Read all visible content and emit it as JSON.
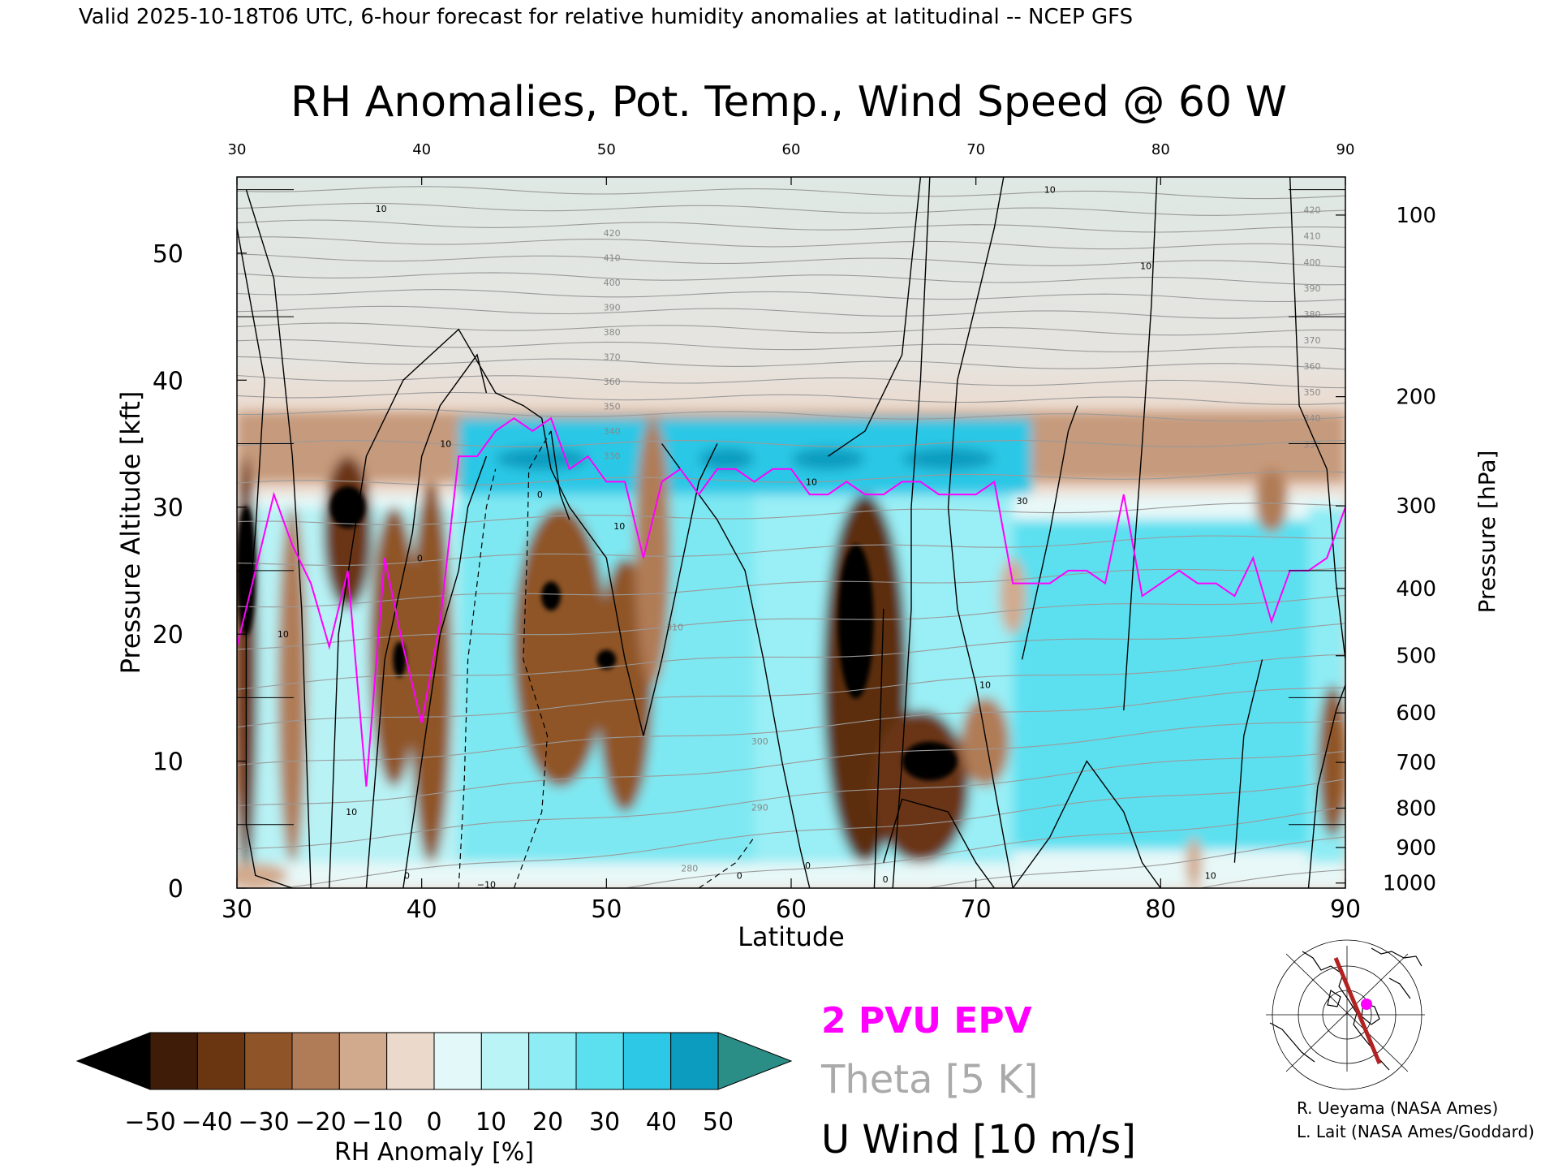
{
  "header": "Valid 2025-10-18T06 UTC, 6-hour forecast for relative humidity anomalies at latitudinal -- NCEP GFS",
  "chart_data": {
    "type": "heatmap",
    "title": "RH Anomalies, Pot. Temp., Wind Speed @ 60 W",
    "xlabel": "Latitude",
    "ylabel": "Pressure Altitude [kft]",
    "y2label": "Pressure [hPa]",
    "xlim": [
      30,
      90
    ],
    "ylim": [
      0,
      56
    ],
    "x_ticks": [
      "30",
      "40",
      "50",
      "60",
      "70",
      "80",
      "90"
    ],
    "top_ticks": [
      "30",
      "40",
      "50",
      "60",
      "70",
      "80",
      "90"
    ],
    "y_ticks": [
      "0",
      "10",
      "20",
      "30",
      "40",
      "50"
    ],
    "pressure_ticks": [
      {
        "label": "100",
        "kft": 53.0
      },
      {
        "label": "200",
        "kft": 38.7
      },
      {
        "label": "300",
        "kft": 30.1
      },
      {
        "label": "400",
        "kft": 23.6
      },
      {
        "label": "500",
        "kft": 18.3
      },
      {
        "label": "600",
        "kft": 13.8
      },
      {
        "label": "700",
        "kft": 9.9
      },
      {
        "label": "800",
        "kft": 6.3
      },
      {
        "label": "900",
        "kft": 3.2
      },
      {
        "label": "1000",
        "kft": 0.4
      }
    ],
    "colorbar": {
      "label": "RH Anomaly [%]",
      "tick_labels": [
        "−50",
        "−40",
        "−30",
        "−20",
        "−10",
        "0",
        "10",
        "20",
        "30",
        "40",
        "50"
      ],
      "colors": [
        "#000000",
        "#3e1c08",
        "#6a3612",
        "#8f5428",
        "#b07c57",
        "#d1aa8e",
        "#ebd9cc",
        "#e3f8f8",
        "#baf4f6",
        "#8eecf4",
        "#5ce0f0",
        "#2cc8e6",
        "#0c9cc0",
        "#2a8e86"
      ]
    },
    "series": [
      {
        "name": "2 PVU EPV",
        "color": "#ff00ff"
      },
      {
        "name": "Theta [5 K]",
        "color": "#aaaaaa"
      },
      {
        "name": "U Wind [10 m/s]",
        "color": "#000000"
      }
    ],
    "epv_2pvu": {
      "x": [
        30,
        31,
        32,
        33,
        34,
        35,
        36,
        37,
        38,
        39,
        40,
        41,
        42,
        43,
        44,
        45,
        46,
        47,
        48,
        49,
        50,
        51,
        52,
        53,
        54,
        55,
        56,
        57,
        58,
        59,
        60,
        61,
        62,
        63,
        64,
        65,
        66,
        67,
        68,
        69,
        70,
        71,
        72,
        73,
        74,
        75,
        76,
        77,
        78,
        79,
        80,
        81,
        82,
        83,
        84,
        85,
        86,
        87,
        88,
        89,
        90
      ],
      "y": [
        19,
        25,
        31,
        27,
        24,
        19,
        25,
        8,
        26,
        19,
        13,
        21,
        34,
        34,
        36,
        37,
        36,
        37,
        33,
        34,
        32,
        32,
        26,
        32,
        33,
        31,
        33,
        33,
        32,
        33,
        33,
        31,
        31,
        32,
        31,
        31,
        32,
        32,
        31,
        31,
        31,
        32,
        24,
        24,
        24,
        25,
        25,
        24,
        31,
        23,
        24,
        25,
        24,
        24,
        23,
        26,
        21,
        25,
        25,
        26,
        30
      ]
    },
    "theta_labels": [
      "420",
      "410",
      "400",
      "390",
      "380",
      "370",
      "360",
      "350",
      "340",
      "330",
      "320",
      "310",
      "300",
      "290",
      "280"
    ],
    "wind_labels": [
      "10",
      "0",
      "−10",
      "30"
    ],
    "rh_anomaly_features": [
      {
        "band": "upper dry band",
        "kft": [
          32,
          38
        ],
        "lat": [
          30,
          90
        ],
        "rh_anomaly": -10
      },
      {
        "band": "moist tropopause band",
        "kft": [
          31,
          37
        ],
        "lat": [
          42,
          72
        ],
        "rh_anomaly": 40
      },
      {
        "band": "dry column",
        "lat": 63.5,
        "kft": 20,
        "rh_anomaly": -50
      },
      {
        "band": "dry column",
        "lat": 67.5,
        "kft": 10,
        "rh_anomaly": -50
      },
      {
        "band": "dry column",
        "lat": 36,
        "kft": 30,
        "rh_anomaly": -50
      },
      {
        "band": "dry column",
        "lat": 30.5,
        "kft": 25,
        "rh_anomaly": -50
      },
      {
        "band": "dry column",
        "lat": 47,
        "kft": 23,
        "rh_anomaly": -45
      },
      {
        "band": "dry column",
        "lat": 50,
        "kft": 18,
        "rh_anomaly": -45
      },
      {
        "band": "moist lower region",
        "lat": [
          74,
          88
        ],
        "kft": [
          3,
          28
        ],
        "rh_anomaly": 30
      }
    ]
  },
  "map": {
    "note_lines": []
  },
  "credits": {
    "line1": "R. Ueyama (NASA Ames)",
    "line2": "L. Lait (NASA Ames/Goddard)"
  },
  "colors": {
    "epv": "#ff00ff",
    "theta": "#aaaaaa",
    "wind": "#000000",
    "track": "#b22222"
  }
}
